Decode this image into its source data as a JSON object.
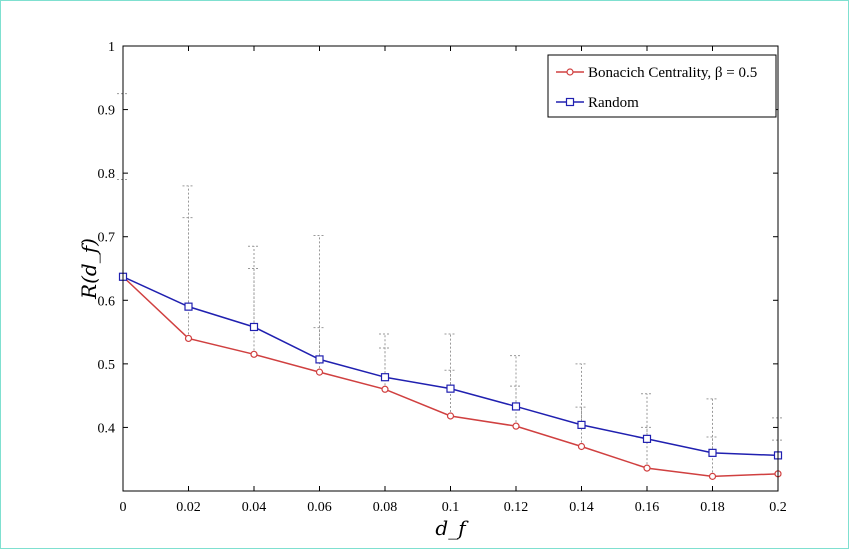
{
  "chart_data": {
    "type": "line",
    "title": "",
    "xlabel": "d_f",
    "ylabel": "R(d_f)",
    "xlim": [
      0,
      0.2
    ],
    "ylim": [
      0.3,
      1.0
    ],
    "x_ticks": [
      0,
      0.02,
      0.04,
      0.06,
      0.08,
      0.1,
      0.12,
      0.14,
      0.16,
      0.18,
      0.2
    ],
    "x_tick_labels": [
      "0",
      "0.02",
      "0.04",
      "0.06",
      "0.08",
      "0.1",
      "0.12",
      "0.14",
      "0.16",
      "0.18",
      "0.2"
    ],
    "y_ticks": [
      0.4,
      0.5,
      0.6,
      0.7,
      0.8,
      0.9,
      1.0
    ],
    "y_tick_labels": [
      "0.4",
      "0.5",
      "0.6",
      "0.7",
      "0.8",
      "0.9",
      "1"
    ],
    "grid": false,
    "legend_position": "top-right",
    "x": [
      0,
      0.02,
      0.04,
      0.06,
      0.08,
      0.1,
      0.12,
      0.14,
      0.16,
      0.18,
      0.2
    ],
    "series": [
      {
        "name": "Bonacich Centrality, β = 0.5",
        "color": "#d04040",
        "marker": "circle",
        "values": [
          0.637,
          0.54,
          0.515,
          0.487,
          0.46,
          0.418,
          0.402,
          0.37,
          0.336,
          0.323,
          0.327
        ],
        "error_upper": [
          0.79,
          0.73,
          0.65,
          0.557,
          0.525,
          0.49,
          0.465,
          0.432,
          0.4,
          0.385,
          0.38
        ],
        "error_lower": [
          null,
          null,
          null,
          null,
          null,
          null,
          null,
          null,
          null,
          null,
          null
        ]
      },
      {
        "name": "Random",
        "color": "#2020b0",
        "marker": "square",
        "values": [
          0.637,
          0.59,
          0.558,
          0.507,
          0.479,
          0.461,
          0.433,
          0.404,
          0.382,
          0.36,
          0.356
        ],
        "error_upper": [
          0.925,
          0.78,
          0.685,
          0.702,
          0.547,
          0.547,
          0.513,
          0.5,
          0.453,
          0.445,
          0.415
        ],
        "error_lower": [
          null,
          null,
          null,
          null,
          null,
          null,
          null,
          null,
          null,
          null,
          null
        ]
      }
    ]
  }
}
